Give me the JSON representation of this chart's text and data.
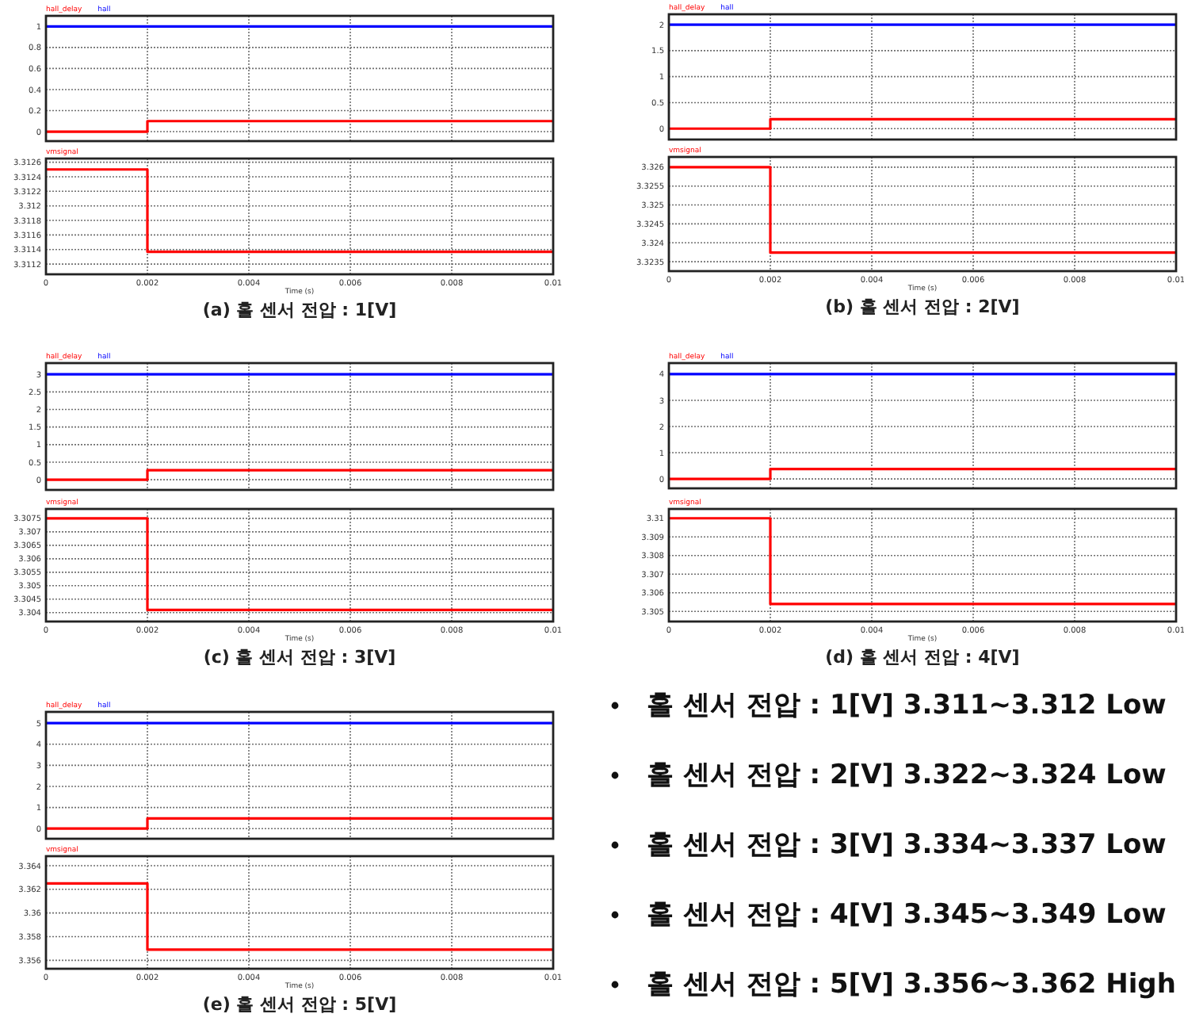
{
  "chart_data": [
    {
      "type": "step",
      "series": [
        {
          "name": "hall_delay",
          "color": "#ff0000",
          "x": [
            0,
            0.002,
            0.01
          ],
          "values": [
            0,
            0.1,
            0.1
          ]
        },
        {
          "name": "hall",
          "color": "#0000ff",
          "x": [
            0,
            0.01
          ],
          "values": [
            1,
            1
          ]
        }
      ],
      "xlim": [
        0,
        0.01
      ],
      "xticks": [
        0,
        0.002,
        0.004,
        0.006,
        0.008,
        0.01
      ],
      "ylim": [
        -0.09,
        1.1
      ],
      "yticks": [
        0,
        0.2,
        0.4,
        0.6,
        0.8,
        1
      ],
      "tick_labels": "y",
      "grid": true,
      "legend": "top left"
    },
    {
      "type": "step",
      "series": [
        {
          "name": "vmsignal",
          "color": "#ff0000",
          "x": [
            0,
            0.002,
            0.01
          ],
          "values": [
            3.3125,
            3.31137,
            3.31137
          ]
        }
      ],
      "xlim": [
        0,
        0.01
      ],
      "xticks": [
        0,
        0.002,
        0.004,
        0.006,
        0.008,
        0.01
      ],
      "ylim": [
        3.31106,
        3.31265
      ],
      "yticks": [
        3.3112,
        3.3114,
        3.3116,
        3.3118,
        3.312,
        3.3122,
        3.3124,
        3.3126
      ],
      "xlabel": "Time (s)",
      "grid": true,
      "legend": "top left",
      "annotations": [
        "(a) 홀 센서 전압 : 1[V]"
      ]
    },
    {
      "type": "step",
      "series": [
        {
          "name": "hall_delay",
          "color": "#ff0000",
          "x": [
            0,
            0.002,
            0.01
          ],
          "values": [
            0,
            0.18,
            0.18
          ]
        },
        {
          "name": "hall",
          "color": "#0000ff",
          "x": [
            0,
            0.01
          ],
          "values": [
            2,
            2
          ]
        }
      ],
      "xlim": [
        0,
        0.01
      ],
      "xticks": [
        0,
        0.002,
        0.004,
        0.006,
        0.008,
        0.01
      ],
      "ylim": [
        -0.21,
        2.2
      ],
      "yticks": [
        0,
        0.5,
        1,
        1.5,
        2
      ],
      "tick_labels": "y",
      "grid": true,
      "legend": "top left"
    },
    {
      "type": "step",
      "series": [
        {
          "name": "vmsignal",
          "color": "#ff0000",
          "x": [
            0,
            0.002,
            0.01
          ],
          "values": [
            3.326,
            3.32374,
            3.32374
          ]
        }
      ],
      "xlim": [
        0,
        0.01
      ],
      "xticks": [
        0,
        0.002,
        0.004,
        0.006,
        0.008,
        0.01
      ],
      "ylim": [
        3.32325,
        3.32627
      ],
      "yticks": [
        3.3235,
        3.324,
        3.3245,
        3.325,
        3.3255,
        3.326
      ],
      "xlabel": "Time (s)",
      "grid": true,
      "legend": "top left",
      "annotations": [
        "(b) 홀 센서 전압 : 2[V]"
      ]
    },
    {
      "type": "step",
      "series": [
        {
          "name": "hall_delay",
          "color": "#ff0000",
          "x": [
            0,
            0.002,
            0.01
          ],
          "values": [
            0,
            0.27,
            0.27
          ]
        },
        {
          "name": "hall",
          "color": "#0000ff",
          "x": [
            0,
            0.01
          ],
          "values": [
            3,
            3
          ]
        }
      ],
      "xlim": [
        0,
        0.01
      ],
      "xticks": [
        0,
        0.002,
        0.004,
        0.006,
        0.008,
        0.01
      ],
      "ylim": [
        -0.29,
        3.32
      ],
      "yticks": [
        0,
        0.5,
        1,
        1.5,
        2,
        2.5,
        3
      ],
      "tick_labels": "y",
      "grid": true,
      "legend": "top left"
    },
    {
      "type": "step",
      "series": [
        {
          "name": "vmsignal",
          "color": "#ff0000",
          "x": [
            0,
            0.002,
            0.01
          ],
          "values": [
            3.3075,
            3.3041,
            3.3041
          ]
        }
      ],
      "xlim": [
        0,
        0.01
      ],
      "xticks": [
        0,
        0.002,
        0.004,
        0.006,
        0.008,
        0.01
      ],
      "ylim": [
        3.30367,
        3.30785
      ],
      "yticks": [
        3.304,
        3.3045,
        3.305,
        3.3055,
        3.306,
        3.3065,
        3.307,
        3.3075
      ],
      "xlabel": "Time (s)",
      "grid": true,
      "legend": "top left",
      "annotations": [
        "(c) 홀 센서 전압 : 3[V]"
      ]
    },
    {
      "type": "step",
      "series": [
        {
          "name": "hall_delay",
          "color": "#ff0000",
          "x": [
            0,
            0.002,
            0.01
          ],
          "values": [
            0,
            0.38,
            0.38
          ]
        },
        {
          "name": "hall",
          "color": "#0000ff",
          "x": [
            0,
            0.01
          ],
          "values": [
            4,
            4
          ]
        }
      ],
      "xlim": [
        0,
        0.01
      ],
      "xticks": [
        0,
        0.002,
        0.004,
        0.006,
        0.008,
        0.01
      ],
      "ylim": [
        -0.36,
        4.42
      ],
      "yticks": [
        0,
        1,
        2,
        3,
        4
      ],
      "tick_labels": "y",
      "grid": true,
      "legend": "top left"
    },
    {
      "type": "step",
      "series": [
        {
          "name": "vmsignal",
          "color": "#ff0000",
          "x": [
            0,
            0.002,
            0.01
          ],
          "values": [
            3.31,
            3.3054,
            3.3054
          ]
        }
      ],
      "xlim": [
        0,
        0.01
      ],
      "xticks": [
        0,
        0.002,
        0.004,
        0.006,
        0.008,
        0.01
      ],
      "ylim": [
        3.30446,
        3.3105
      ],
      "yticks": [
        3.305,
        3.306,
        3.307,
        3.308,
        3.309,
        3.31
      ],
      "xlabel": "Time (s)",
      "grid": true,
      "legend": "top left",
      "annotations": [
        "(d) 홀 센서 전압 : 4[V]"
      ]
    },
    {
      "type": "step",
      "series": [
        {
          "name": "hall_delay",
          "color": "#ff0000",
          "x": [
            0,
            0.002,
            0.01
          ],
          "values": [
            0,
            0.48,
            0.48
          ]
        },
        {
          "name": "hall",
          "color": "#0000ff",
          "x": [
            0,
            0.01
          ],
          "values": [
            5,
            5
          ]
        }
      ],
      "xlim": [
        0,
        0.01
      ],
      "xticks": [
        0,
        0.002,
        0.004,
        0.006,
        0.008,
        0.01
      ],
      "ylim": [
        -0.48,
        5.53
      ],
      "yticks": [
        0,
        1,
        2,
        3,
        4,
        5
      ],
      "tick_labels": "y",
      "grid": true,
      "legend": "top left"
    },
    {
      "type": "step",
      "series": [
        {
          "name": "vmsignal",
          "color": "#ff0000",
          "x": [
            0,
            0.002,
            0.01
          ],
          "values": [
            3.3625,
            3.3569,
            3.3569
          ]
        }
      ],
      "xlim": [
        0,
        0.01
      ],
      "xticks": [
        0,
        0.002,
        0.004,
        0.006,
        0.008,
        0.01
      ],
      "ylim": [
        3.35529,
        3.3648
      ],
      "yticks": [
        3.356,
        3.358,
        3.36,
        3.362,
        3.364
      ],
      "xlabel": "Time (s)",
      "grid": true,
      "legend": "top left",
      "annotations": [
        "(e) 홀 센서 전압 : 5[V]"
      ]
    },
    {
      "type": "other",
      "annotations": [
        "홀 센서 전압 : 1[V] 3.311~3.312 Low",
        "홀 센서 전압 : 2[V] 3.322~3.324 Low",
        "홀 센서 전압 : 3[V] 3.334~3.337 Low",
        "홀 센서 전압 : 4[V] 3.345~3.349 Low",
        "홀 센서 전압 : 5[V] 3.356~3.362 High"
      ]
    }
  ]
}
